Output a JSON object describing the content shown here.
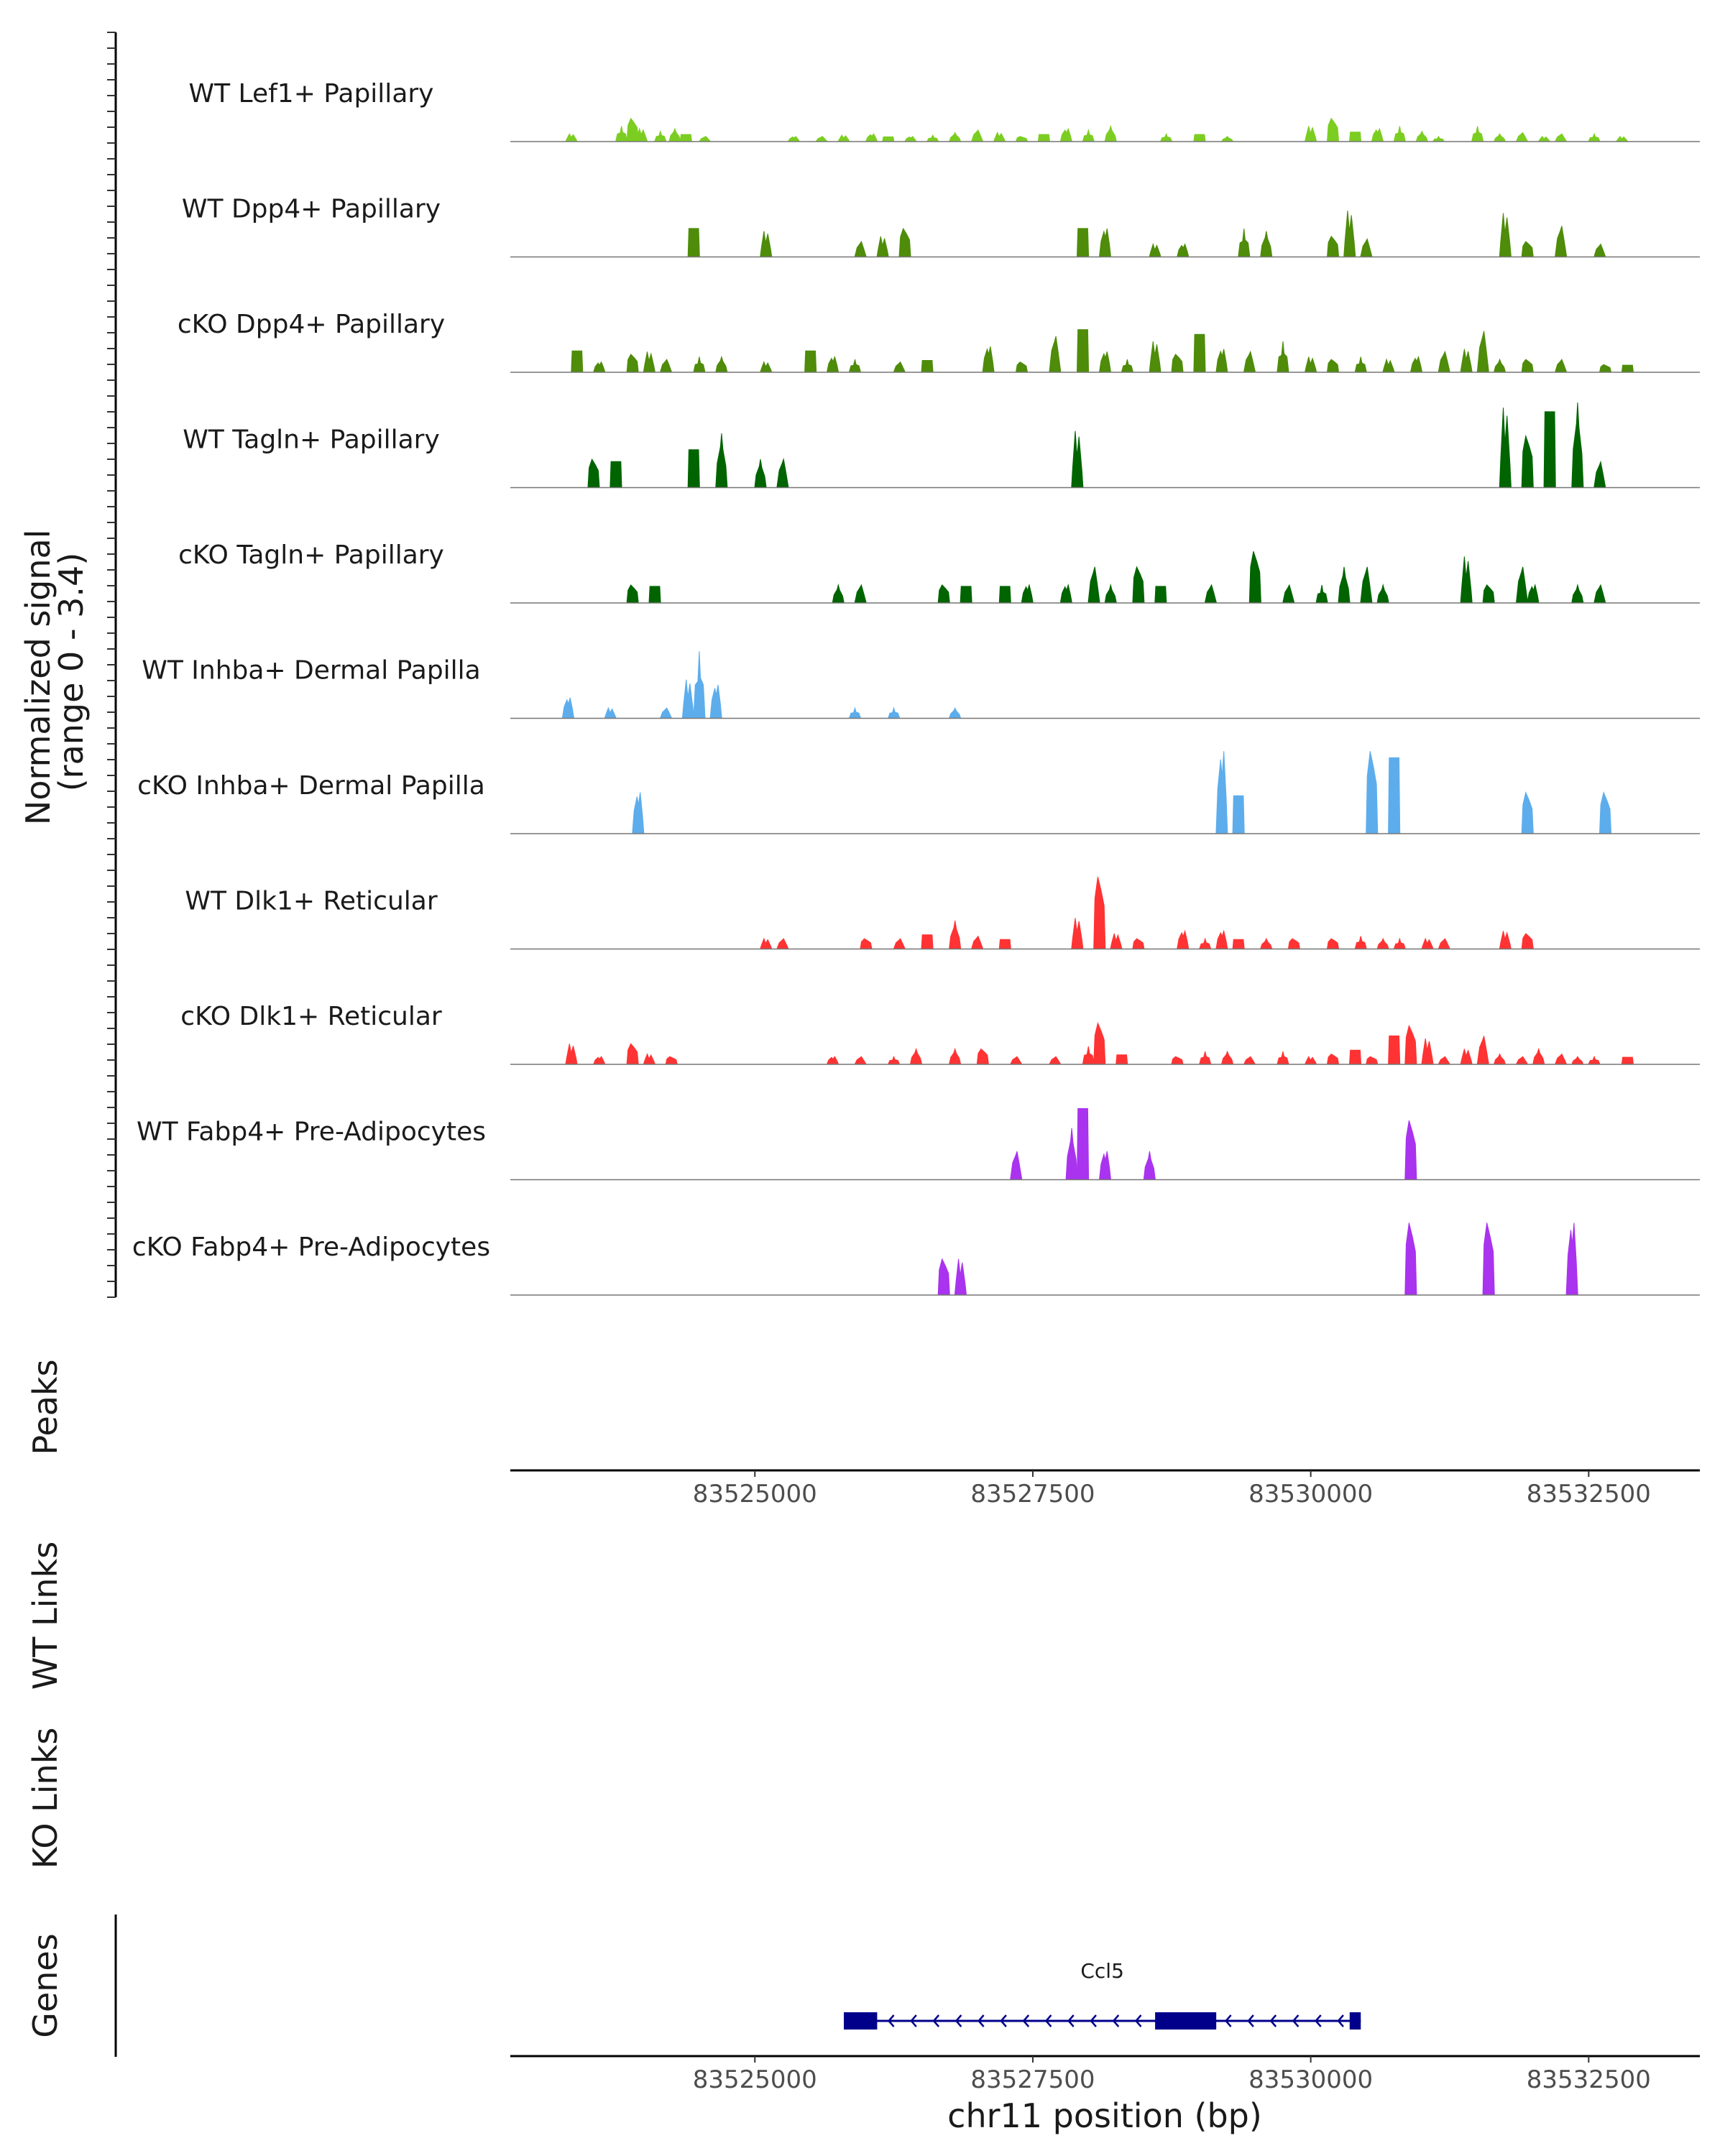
{
  "chart_data": {
    "type": "area",
    "title": "",
    "chromosome": "chr11",
    "xlabel": "chr11 position (bp)",
    "xlim": [
      83522800,
      83533500
    ],
    "x_ticks": [
      83525000,
      83527500,
      83530000,
      83532500
    ],
    "coverage_ylabel": "Normalized signal\n(range 0 - 3.4)",
    "coverage_range": [
      0,
      3.4
    ],
    "panel_labels": {
      "peaks": "Peaks",
      "wt_links": "WT Links",
      "ko_links": "KO Links",
      "genes": "Genes"
    },
    "tracks": [
      {
        "name": "WT Lef1+ Papillary",
        "color": "#7CCD21",
        "peaks": [
          [
            83523350,
            0.3
          ],
          [
            83523800,
            0.6
          ],
          [
            83523900,
            0.9
          ],
          [
            83523980,
            0.5
          ],
          [
            83524150,
            0.4
          ],
          [
            83524280,
            0.5
          ],
          [
            83524380,
            0.3
          ],
          [
            83524550,
            0.2
          ],
          [
            83525350,
            0.2
          ],
          [
            83525600,
            0.2
          ],
          [
            83525800,
            0.25
          ],
          [
            83526050,
            0.3
          ],
          [
            83526200,
            0.2
          ],
          [
            83526400,
            0.2
          ],
          [
            83526600,
            0.25
          ],
          [
            83526800,
            0.35
          ],
          [
            83527000,
            0.45
          ],
          [
            83527200,
            0.35
          ],
          [
            83527400,
            0.2
          ],
          [
            83527600,
            0.3
          ],
          [
            83527800,
            0.5
          ],
          [
            83528000,
            0.45
          ],
          [
            83528200,
            0.6
          ],
          [
            83528700,
            0.3
          ],
          [
            83529000,
            0.3
          ],
          [
            83529250,
            0.2
          ],
          [
            83530000,
            0.6
          ],
          [
            83530200,
            0.9
          ],
          [
            83530400,
            0.4
          ],
          [
            83530600,
            0.5
          ],
          [
            83530800,
            0.6
          ],
          [
            83531000,
            0.4
          ],
          [
            83531150,
            0.2
          ],
          [
            83531500,
            0.6
          ],
          [
            83531700,
            0.3
          ],
          [
            83531900,
            0.35
          ],
          [
            83532100,
            0.2
          ],
          [
            83532250,
            0.3
          ],
          [
            83532550,
            0.3
          ],
          [
            83532800,
            0.2
          ]
        ]
      },
      {
        "name": "WT Dpp4+ Papillary",
        "color": "#4E8C0A",
        "peaks": [
          [
            83524450,
            1.2
          ],
          [
            83525100,
            1.0
          ],
          [
            83525950,
            0.6
          ],
          [
            83526150,
            0.8
          ],
          [
            83526350,
            1.1
          ],
          [
            83527950,
            1.2
          ],
          [
            83528150,
            1.1
          ],
          [
            83528600,
            0.5
          ],
          [
            83528850,
            0.5
          ],
          [
            83529400,
            1.1
          ],
          [
            83529600,
            1.0
          ],
          [
            83530200,
            0.8
          ],
          [
            83530350,
            1.8
          ],
          [
            83530500,
            0.7
          ],
          [
            83531750,
            1.7
          ],
          [
            83531950,
            0.6
          ],
          [
            83532250,
            1.2
          ],
          [
            83532600,
            0.5
          ]
        ]
      },
      {
        "name": "cKO Dpp4+ Papillary",
        "color": "#4E8C0A",
        "peaks": [
          [
            83523400,
            0.9
          ],
          [
            83523600,
            0.4
          ],
          [
            83523900,
            0.7
          ],
          [
            83524050,
            0.8
          ],
          [
            83524200,
            0.5
          ],
          [
            83524500,
            0.6
          ],
          [
            83524700,
            0.6
          ],
          [
            83525100,
            0.4
          ],
          [
            83525500,
            0.9
          ],
          [
            83525700,
            0.6
          ],
          [
            83525900,
            0.5
          ],
          [
            83526300,
            0.4
          ],
          [
            83526550,
            0.5
          ],
          [
            83527100,
            1.0
          ],
          [
            83527400,
            0.4
          ],
          [
            83527700,
            1.4
          ],
          [
            83527950,
            1.8
          ],
          [
            83528150,
            0.8
          ],
          [
            83528350,
            0.5
          ],
          [
            83528600,
            1.2
          ],
          [
            83528800,
            0.7
          ],
          [
            83529000,
            1.6
          ],
          [
            83529200,
            0.9
          ],
          [
            83529450,
            0.8
          ],
          [
            83529750,
            1.2
          ],
          [
            83530000,
            0.6
          ],
          [
            83530200,
            0.5
          ],
          [
            83530450,
            0.6
          ],
          [
            83530700,
            0.5
          ],
          [
            83530950,
            0.6
          ],
          [
            83531200,
            0.8
          ],
          [
            83531400,
            0.9
          ],
          [
            83531550,
            1.6
          ],
          [
            83531700,
            0.5
          ],
          [
            83531950,
            0.5
          ],
          [
            83532250,
            0.5
          ],
          [
            83532650,
            0.3
          ],
          [
            83532850,
            0.3
          ]
        ]
      },
      {
        "name": "WT Tagln+ Papillary",
        "color": "#006400",
        "peaks": [
          [
            83523550,
            1.1
          ],
          [
            83523750,
            1.1
          ],
          [
            83524450,
            1.6
          ],
          [
            83524700,
            2.1
          ],
          [
            83525050,
            1.1
          ],
          [
            83525250,
            1.1
          ],
          [
            83527900,
            2.2
          ],
          [
            83531750,
            3.1
          ],
          [
            83531950,
            2.0
          ],
          [
            83532150,
            3.2
          ],
          [
            83532400,
            3.3
          ],
          [
            83532600,
            1.0
          ]
        ]
      },
      {
        "name": "cKO Tagln+ Papillary",
        "color": "#006400",
        "peaks": [
          [
            83523900,
            0.7
          ],
          [
            83524100,
            0.7
          ],
          [
            83525750,
            0.7
          ],
          [
            83525950,
            0.7
          ],
          [
            83526700,
            0.7
          ],
          [
            83526900,
            0.7
          ],
          [
            83527250,
            0.7
          ],
          [
            83527450,
            0.7
          ],
          [
            83527800,
            0.7
          ],
          [
            83528050,
            1.4
          ],
          [
            83528200,
            0.7
          ],
          [
            83528450,
            1.4
          ],
          [
            83528650,
            0.7
          ],
          [
            83529100,
            0.7
          ],
          [
            83529500,
            2.0
          ],
          [
            83529800,
            0.7
          ],
          [
            83530100,
            0.7
          ],
          [
            83530300,
            1.4
          ],
          [
            83530500,
            1.4
          ],
          [
            83530650,
            0.7
          ],
          [
            83531400,
            1.8
          ],
          [
            83531600,
            0.7
          ],
          [
            83531900,
            1.4
          ],
          [
            83532000,
            0.7
          ],
          [
            83532400,
            0.7
          ],
          [
            83532600,
            0.7
          ]
        ]
      },
      {
        "name": "WT Inhba+ Dermal Papilla",
        "color": "#5DADEC",
        "peaks": [
          [
            83523320,
            0.8
          ],
          [
            83523700,
            0.4
          ],
          [
            83524200,
            0.4
          ],
          [
            83524400,
            1.5
          ],
          [
            83524500,
            2.6
          ],
          [
            83524650,
            1.3
          ],
          [
            83525900,
            0.4
          ],
          [
            83526250,
            0.4
          ],
          [
            83526800,
            0.4
          ]
        ]
      },
      {
        "name": "cKO Inhba+ Dermal Papilla",
        "color": "#5DADEC",
        "peaks": [
          [
            83523950,
            1.6
          ],
          [
            83529200,
            3.2
          ],
          [
            83529350,
            1.6
          ],
          [
            83530550,
            3.2
          ],
          [
            83530750,
            3.2
          ],
          [
            83531950,
            1.6
          ],
          [
            83532650,
            1.6
          ]
        ]
      },
      {
        "name": "WT Dlk1+ Reticular",
        "color": "#FF3333",
        "peaks": [
          [
            83525100,
            0.4
          ],
          [
            83525250,
            0.4
          ],
          [
            83526000,
            0.4
          ],
          [
            83526300,
            0.4
          ],
          [
            83526550,
            0.6
          ],
          [
            83526800,
            1.1
          ],
          [
            83527000,
            0.5
          ],
          [
            83527250,
            0.4
          ],
          [
            83527900,
            1.2
          ],
          [
            83528100,
            2.8
          ],
          [
            83528250,
            0.6
          ],
          [
            83528450,
            0.4
          ],
          [
            83528850,
            0.7
          ],
          [
            83529050,
            0.4
          ],
          [
            83529200,
            0.7
          ],
          [
            83529350,
            0.4
          ],
          [
            83529600,
            0.4
          ],
          [
            83529850,
            0.4
          ],
          [
            83530200,
            0.4
          ],
          [
            83530450,
            0.5
          ],
          [
            83530650,
            0.4
          ],
          [
            83530800,
            0.4
          ],
          [
            83531050,
            0.4
          ],
          [
            83531200,
            0.4
          ],
          [
            83531750,
            0.7
          ],
          [
            83531950,
            0.6
          ]
        ]
      },
      {
        "name": "cKO Dlk1+ Reticular",
        "color": "#FF3333",
        "peaks": [
          [
            83523350,
            0.8
          ],
          [
            83523600,
            0.3
          ],
          [
            83523900,
            0.8
          ],
          [
            83524050,
            0.4
          ],
          [
            83524250,
            0.3
          ],
          [
            83525700,
            0.3
          ],
          [
            83525950,
            0.3
          ],
          [
            83526250,
            0.3
          ],
          [
            83526450,
            0.6
          ],
          [
            83526800,
            0.6
          ],
          [
            83527050,
            0.6
          ],
          [
            83527350,
            0.3
          ],
          [
            83527700,
            0.3
          ],
          [
            83528000,
            0.7
          ],
          [
            83528100,
            1.6
          ],
          [
            83528300,
            0.4
          ],
          [
            83528800,
            0.3
          ],
          [
            83529050,
            0.5
          ],
          [
            83529250,
            0.5
          ],
          [
            83529450,
            0.3
          ],
          [
            83529750,
            0.5
          ],
          [
            83530000,
            0.3
          ],
          [
            83530200,
            0.4
          ],
          [
            83530400,
            0.6
          ],
          [
            83530550,
            0.3
          ],
          [
            83530750,
            1.2
          ],
          [
            83530900,
            1.5
          ],
          [
            83531050,
            1.0
          ],
          [
            83531200,
            0.3
          ],
          [
            83531400,
            0.6
          ],
          [
            83531550,
            1.1
          ],
          [
            83531700,
            0.4
          ],
          [
            83531900,
            0.3
          ],
          [
            83532050,
            0.6
          ],
          [
            83532250,
            0.4
          ],
          [
            83532400,
            0.3
          ],
          [
            83532550,
            0.3
          ],
          [
            83532850,
            0.3
          ]
        ]
      },
      {
        "name": "WT Fabp4+ Pre-Adipocytes",
        "color": "#A933EE",
        "peaks": [
          [
            83527350,
            1.1
          ],
          [
            83527850,
            2.0
          ],
          [
            83527950,
            3.0
          ],
          [
            83528150,
            1.1
          ],
          [
            83528550,
            1.1
          ],
          [
            83530900,
            2.3
          ]
        ]
      },
      {
        "name": "cKO Fabp4+ Pre-Adipocytes",
        "color": "#A933EE",
        "peaks": [
          [
            83526700,
            1.4
          ],
          [
            83526850,
            1.4
          ],
          [
            83530900,
            2.8
          ],
          [
            83531600,
            2.8
          ],
          [
            83532350,
            2.8
          ]
        ]
      }
    ],
    "genes": [
      {
        "name": "Ccl5",
        "strand": "-",
        "start": 83525800,
        "end": 83530450,
        "exons": [
          [
            83525800,
            83526100
          ],
          [
            83528600,
            83529150
          ],
          [
            83530350,
            83530450
          ]
        ]
      }
    ]
  }
}
